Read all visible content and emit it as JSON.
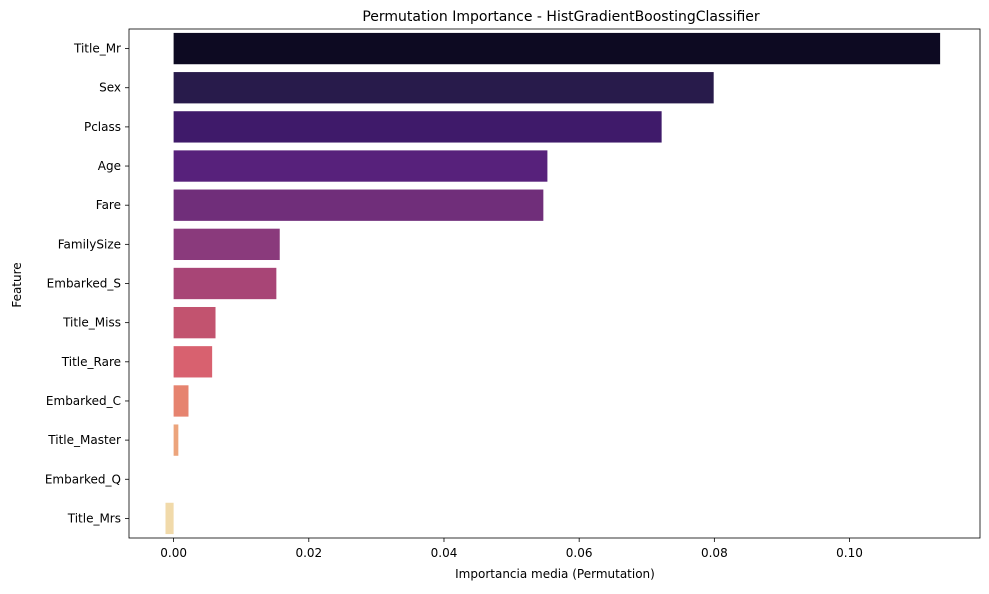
{
  "chart_data": {
    "type": "bar",
    "orientation": "horizontal",
    "title": "Permutation Importance - HistGradientBoostingClassifier",
    "xlabel": "Importancia media (Permutation)",
    "ylabel": "Feature",
    "categories": [
      "Title_Mr",
      "Sex",
      "Pclass",
      "Age",
      "Fare",
      "FamilySize",
      "Embarked_S",
      "Title_Miss",
      "Title_Rare",
      "Embarked_C",
      "Title_Master",
      "Embarked_Q",
      "Title_Mrs"
    ],
    "values": [
      0.1134,
      0.0799,
      0.0722,
      0.0553,
      0.0547,
      0.0157,
      0.0152,
      0.0062,
      0.0057,
      0.0022,
      0.0007,
      0.0,
      -0.0012
    ],
    "colors": [
      "#0d0a22",
      "#281b4b",
      "#3f1a6a",
      "#57217b",
      "#702e7a",
      "#8a3a7c",
      "#a84576",
      "#c2536f",
      "#d8616f",
      "#e6836f",
      "#eca47c",
      "#f0c392",
      "#f1daaa"
    ],
    "xlim": [
      -0.0066,
      0.1193
    ],
    "xticks": [
      0.0,
      0.02,
      0.04,
      0.06,
      0.08,
      0.1
    ],
    "xtick_labels": [
      "0.00",
      "0.02",
      "0.04",
      "0.06",
      "0.08",
      "0.10"
    ],
    "grid": false,
    "legend": "none"
  }
}
